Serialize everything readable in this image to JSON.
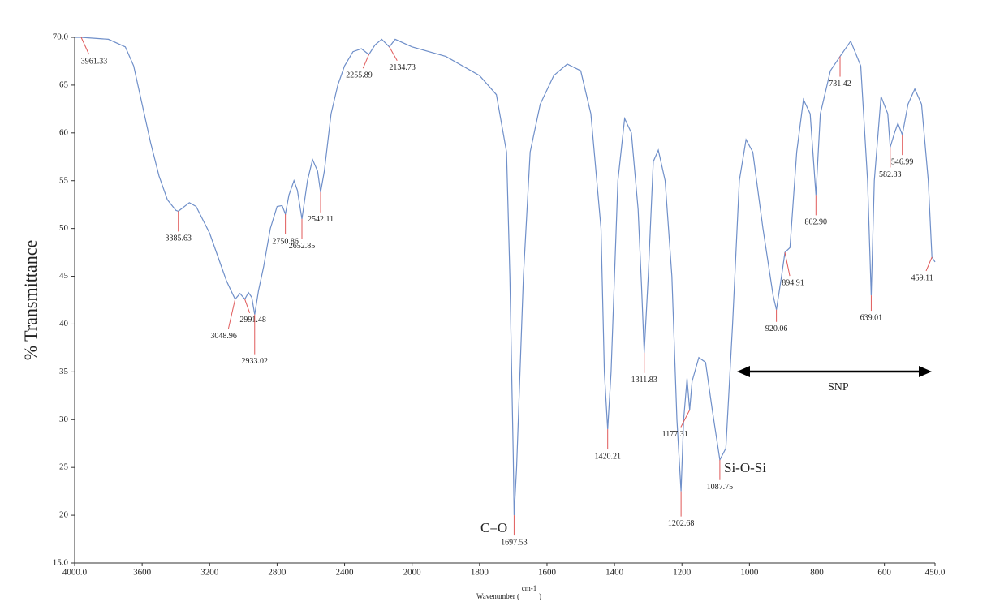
{
  "chart_data": {
    "type": "line",
    "y_label": "% Transmittance",
    "x_label": {
      "text": "Wavenumber (",
      "unit": "cm-1",
      "close": ")"
    },
    "xlim": [
      4000,
      450
    ],
    "xscale": {
      "break": 2000,
      "factor": 2
    },
    "xticks": [
      {
        "value": 4000,
        "label": "4000.0"
      },
      3600,
      3200,
      2800,
      2400,
      2000,
      1800,
      1600,
      1400,
      1200,
      1000,
      800,
      600,
      {
        "value": 450,
        "label": "450.0"
      }
    ],
    "ylim": [
      15,
      70
    ],
    "yticks": [
      {
        "value": 15,
        "label": "15.0"
      },
      20,
      25,
      30,
      35,
      40,
      45,
      50,
      55,
      60,
      65,
      {
        "value": 70,
        "label": "70.0"
      }
    ],
    "color": "#6f8fc9",
    "x": [
      4000,
      3961.33,
      3800,
      3700,
      3650,
      3600,
      3550,
      3500,
      3450,
      3400,
      3385.63,
      3320,
      3280,
      3200,
      3150,
      3100,
      3060,
      3048.96,
      3020,
      2991.48,
      2970,
      2950,
      2933.02,
      2910,
      2880,
      2860,
      2840,
      2800,
      2770,
      2750.86,
      2730,
      2700,
      2680,
      2652.85,
      2620,
      2590,
      2560,
      2542.11,
      2520,
      2480,
      2440,
      2400,
      2350,
      2300,
      2255.89,
      2220,
      2180,
      2134.73,
      2100,
      2000,
      1900,
      1800,
      1750,
      1720,
      1710,
      1700,
      1697.53,
      1690,
      1670,
      1650,
      1620,
      1580,
      1540,
      1500,
      1470,
      1440,
      1430,
      1420.21,
      1410,
      1390,
      1370,
      1350,
      1330,
      1320,
      1311.83,
      1300,
      1285,
      1270,
      1250,
      1230,
      1215,
      1202.68,
      1195,
      1185,
      1177.31,
      1170,
      1150,
      1130,
      1110,
      1087.75,
      1070,
      1050,
      1030,
      1010,
      990,
      960,
      930,
      920.06,
      905,
      894.91,
      880,
      860,
      840,
      820,
      802.9,
      790,
      760,
      731.42,
      700,
      670,
      650,
      639.01,
      630,
      610,
      590,
      582.83,
      570,
      560,
      546.99,
      530,
      510,
      490,
      470,
      459.11,
      450
    ],
    "values": [
      70,
      70,
      69.8,
      69,
      67,
      63,
      59,
      55.5,
      53,
      51.9,
      51.8,
      52.7,
      52.3,
      49.5,
      47,
      44.5,
      43,
      42.6,
      43.2,
      42.6,
      43.3,
      42.8,
      41,
      43.5,
      46,
      48,
      50,
      52.3,
      52.4,
      51.5,
      53.5,
      55,
      54,
      51,
      55,
      57.2,
      56,
      53.8,
      56,
      62,
      65,
      67,
      68.5,
      68.8,
      68.2,
      69.2,
      69.8,
      69,
      69.8,
      69,
      68,
      66,
      64,
      58,
      45,
      26,
      20,
      25,
      45,
      58,
      63,
      66,
      67.2,
      66.5,
      62,
      50,
      35,
      29,
      35,
      55,
      61.5,
      60,
      52,
      44,
      37,
      45,
      57,
      58.2,
      55,
      45,
      30,
      22.5,
      30,
      34.3,
      31,
      34,
      36.5,
      36,
      31,
      25.8,
      27,
      40,
      55,
      59.3,
      58,
      50,
      43,
      41.5,
      45,
      47.5,
      48,
      58,
      63.5,
      62,
      53.5,
      62,
      66.5,
      68,
      69.6,
      67,
      55,
      43,
      55,
      63.8,
      62,
      58.5,
      60,
      61,
      59.8,
      63,
      64.6,
      63,
      55,
      47,
      46.5
    ],
    "peaks": {
      "color": "#e05a5a",
      "x": [
        3961.33,
        3385.63,
        3048.96,
        2991.48,
        2933.02,
        2750.86,
        2652.85,
        2542.11,
        2255.89,
        2134.73,
        1697.53,
        1420.21,
        1311.83,
        1202.68,
        1177.31,
        1087.75,
        920.06,
        894.91,
        {
          "value": 802.9,
          "label": "802.90"
        },
        731.42,
        639.01,
        582.83,
        546.99,
        459.11
      ],
      "values": [
        70,
        51.8,
        42.6,
        42.6,
        41,
        51.5,
        51,
        53.8,
        68.2,
        69,
        20,
        29,
        37,
        22.5,
        31,
        25.8,
        41.5,
        47.5,
        53.5,
        68,
        43,
        58.5,
        59.8,
        47
      ]
    },
    "annotations": [
      "C=O",
      "Si-O-Si",
      "SNP"
    ]
  }
}
